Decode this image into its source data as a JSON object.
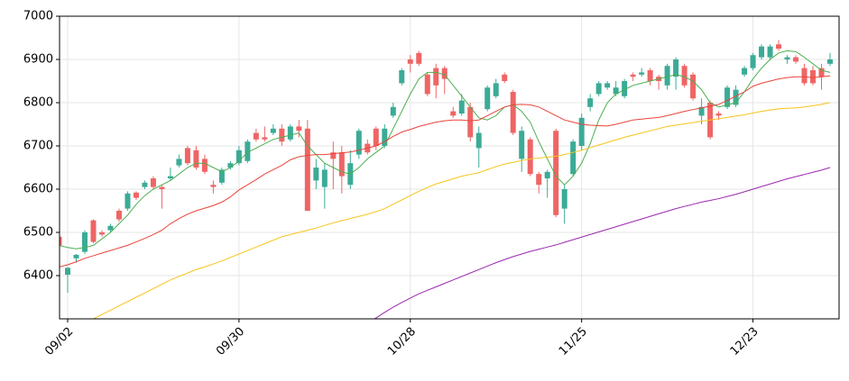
{
  "chart_data": {
    "type": "candlestick",
    "categories": [
      null,
      "09/02",
      null,
      null,
      null,
      null,
      null,
      null,
      null,
      null,
      null,
      null,
      null,
      null,
      null,
      null,
      null,
      null,
      null,
      null,
      null,
      "09/30",
      null,
      null,
      null,
      null,
      null,
      null,
      null,
      null,
      null,
      null,
      null,
      null,
      null,
      null,
      null,
      null,
      null,
      null,
      null,
      "10/28",
      null,
      null,
      null,
      null,
      null,
      null,
      null,
      null,
      null,
      null,
      null,
      null,
      null,
      null,
      null,
      null,
      null,
      null,
      null,
      "11/25",
      null,
      null,
      null,
      null,
      null,
      null,
      null,
      null,
      null,
      null,
      null,
      null,
      null,
      null,
      null,
      null,
      null,
      null,
      null,
      "12/23",
      null,
      null,
      null,
      null,
      null,
      null,
      null,
      null,
      null
    ],
    "open": [
      6490,
      6402,
      6440,
      6455,
      6528,
      6500,
      6505,
      6550,
      6555,
      6592,
      6605,
      6625,
      6605,
      6625,
      6655,
      6695,
      6690,
      6670,
      6610,
      6615,
      6650,
      6660,
      6665,
      6730,
      6720,
      6730,
      6740,
      6715,
      6745,
      6740,
      6620,
      6605,
      6685,
      6685,
      6610,
      6680,
      6705,
      6740,
      6700,
      6770,
      6845,
      6900,
      6915,
      6865,
      6880,
      6880,
      6780,
      6775,
      6790,
      6695,
      6785,
      6815,
      6865,
      6825,
      6670,
      6715,
      6635,
      6625,
      6735,
      6555,
      6635,
      6700,
      6790,
      6820,
      6835,
      6820,
      6815,
      6865,
      6865,
      6875,
      6860,
      6840,
      6860,
      6885,
      6865,
      6770,
      6800,
      6775,
      6790,
      6795,
      6865,
      6880,
      6905,
      6905,
      6935,
      6900,
      6905,
      6880,
      6875,
      6880,
      6890
    ],
    "high": [
      6500,
      6420,
      6450,
      6505,
      6530,
      6505,
      6520,
      6555,
      6595,
      6595,
      6620,
      6630,
      6610,
      6650,
      6680,
      6700,
      6700,
      6680,
      6620,
      6650,
      6665,
      6700,
      6715,
      6740,
      6745,
      6750,
      6750,
      6750,
      6760,
      6760,
      6670,
      6660,
      6710,
      6700,
      6690,
      6740,
      6715,
      6745,
      6750,
      6800,
      6880,
      6910,
      6920,
      6870,
      6890,
      6885,
      6790,
      6820,
      6800,
      6745,
      6840,
      6855,
      6870,
      6830,
      6745,
      6720,
      6640,
      6645,
      6740,
      6610,
      6715,
      6775,
      6820,
      6850,
      6850,
      6850,
      6855,
      6870,
      6880,
      6880,
      6865,
      6890,
      6905,
      6890,
      6870,
      6810,
      6805,
      6780,
      6840,
      6840,
      6885,
      6915,
      6935,
      6935,
      6945,
      6910,
      6910,
      6890,
      6885,
      6890,
      6915
    ],
    "low": [
      6465,
      6360,
      6430,
      6450,
      6475,
      6490,
      6500,
      6525,
      6550,
      6575,
      6600,
      6600,
      6555,
      6620,
      6650,
      6655,
      6645,
      6635,
      6590,
      6610,
      6645,
      6655,
      6660,
      6710,
      6710,
      6725,
      6700,
      6710,
      6720,
      6550,
      6600,
      6555,
      6600,
      6590,
      6600,
      6670,
      6680,
      6690,
      6695,
      6765,
      6840,
      6870,
      6885,
      6815,
      6810,
      6820,
      6765,
      6770,
      6710,
      6650,
      6780,
      6810,
      6845,
      6725,
      6640,
      6630,
      6590,
      6580,
      6535,
      6520,
      6630,
      6690,
      6780,
      6815,
      6830,
      6815,
      6810,
      6850,
      6860,
      6840,
      6830,
      6830,
      6830,
      6835,
      6805,
      6750,
      6715,
      6760,
      6785,
      6790,
      6860,
      6875,
      6900,
      6900,
      6920,
      6890,
      6890,
      6840,
      6840,
      6830,
      6885
    ],
    "close": [
      6470,
      6418,
      6448,
      6500,
      6478,
      6495,
      6515,
      6530,
      6590,
      6580,
      6615,
      6605,
      6600,
      6630,
      6670,
      6660,
      6650,
      6640,
      6605,
      6645,
      6660,
      6690,
      6710,
      6715,
      6715,
      6740,
      6710,
      6745,
      6735,
      6550,
      6650,
      6645,
      6670,
      6630,
      6660,
      6735,
      6685,
      6700,
      6740,
      6790,
      6875,
      6890,
      6890,
      6820,
      6840,
      6855,
      6770,
      6805,
      6720,
      6730,
      6835,
      6845,
      6850,
      6730,
      6735,
      6635,
      6610,
      6640,
      6540,
      6600,
      6710,
      6765,
      6810,
      6845,
      6845,
      6835,
      6850,
      6860,
      6870,
      6850,
      6850,
      6885,
      6900,
      6840,
      6810,
      6790,
      6720,
      6770,
      6835,
      6830,
      6880,
      6910,
      6930,
      6930,
      6925,
      6905,
      6895,
      6845,
      6845,
      6860,
      6900
    ],
    "up_color": "#3bab96",
    "down_color": "#ef6565",
    "series": [
      {
        "color": "#4caf50",
        "values": [
          6470,
          6465,
          6462,
          6465,
          6470,
          6485,
          6500,
          6520,
          6540,
          6565,
          6585,
          6600,
          6610,
          6620,
          6635,
          6650,
          6660,
          6660,
          6650,
          6640,
          6650,
          6665,
          6685,
          6695,
          6705,
          6715,
          6720,
          6725,
          6730,
          6700,
          6680,
          6660,
          6650,
          6640,
          6635,
          6650,
          6670,
          6685,
          6700,
          6740,
          6780,
          6820,
          6855,
          6870,
          6870,
          6865,
          6840,
          6815,
          6790,
          6765,
          6760,
          6770,
          6790,
          6795,
          6780,
          6755,
          6710,
          6670,
          6630,
          6610,
          6630,
          6660,
          6705,
          6760,
          6800,
          6820,
          6830,
          6840,
          6845,
          6850,
          6855,
          6860,
          6865,
          6860,
          6850,
          6830,
          6800,
          6790,
          6795,
          6800,
          6825,
          6855,
          6880,
          6900,
          6915,
          6920,
          6918,
          6905,
          6890,
          6875,
          6870
        ]
      },
      {
        "color": "#e8443a",
        "values": [
          6420,
          6425,
          6432,
          6440,
          6446,
          6452,
          6458,
          6464,
          6470,
          6478,
          6486,
          6495,
          6505,
          6520,
          6532,
          6542,
          6550,
          6556,
          6562,
          6570,
          6582,
          6598,
          6610,
          6622,
          6635,
          6645,
          6655,
          6668,
          6675,
          6678,
          6680,
          6680,
          6682,
          6684,
          6686,
          6690,
          6695,
          6700,
          6710,
          6722,
          6732,
          6738,
          6745,
          6750,
          6755,
          6758,
          6760,
          6760,
          6758,
          6760,
          6770,
          6780,
          6790,
          6795,
          6796,
          6795,
          6790,
          6780,
          6770,
          6760,
          6755,
          6750,
          6748,
          6747,
          6746,
          6750,
          6755,
          6760,
          6762,
          6764,
          6766,
          6770,
          6775,
          6780,
          6784,
          6788,
          6792,
          6796,
          6805,
          6815,
          6825,
          6838,
          6845,
          6850,
          6855,
          6858,
          6860,
          6860,
          6858,
          6860,
          6862
        ]
      },
      {
        "color": "#f5c518",
        "values": [
          6260,
          6272,
          6284,
          6292,
          6300,
          6310,
          6320,
          6330,
          6340,
          6350,
          6360,
          6370,
          6380,
          6390,
          6398,
          6406,
          6414,
          6420,
          6427,
          6434,
          6442,
          6450,
          6458,
          6466,
          6474,
          6482,
          6490,
          6495,
          6500,
          6505,
          6510,
          6516,
          6522,
          6527,
          6532,
          6537,
          6542,
          6548,
          6555,
          6565,
          6575,
          6585,
          6595,
          6604,
          6612,
          6618,
          6624,
          6630,
          6634,
          6638,
          6645,
          6652,
          6658,
          6662,
          6666,
          6670,
          6672,
          6674,
          6676,
          6680,
          6685,
          6690,
          6696,
          6702,
          6708,
          6714,
          6720,
          6725,
          6730,
          6735,
          6740,
          6745,
          6748,
          6751,
          6754,
          6757,
          6760,
          6763,
          6766,
          6769,
          6772,
          6776,
          6780,
          6783,
          6786,
          6787,
          6788,
          6790,
          6793,
          6796,
          6800
        ]
      },
      {
        "color": "#9c27b0",
        "values": [
          null,
          null,
          null,
          null,
          null,
          null,
          null,
          null,
          null,
          null,
          null,
          null,
          null,
          null,
          null,
          null,
          null,
          null,
          null,
          null,
          null,
          null,
          null,
          null,
          null,
          null,
          null,
          null,
          null,
          null,
          null,
          null,
          null,
          null,
          null,
          null,
          6292,
          6302,
          6315,
          6327,
          6338,
          6348,
          6358,
          6366,
          6374,
          6382,
          6390,
          6398,
          6406,
          6414,
          6422,
          6430,
          6437,
          6444,
          6450,
          6456,
          6461,
          6466,
          6471,
          6477,
          6483,
          6489,
          6495,
          6501,
          6507,
          6513,
          6519,
          6525,
          6531,
          6537,
          6543,
          6549,
          6555,
          6560,
          6565,
          6570,
          6574,
          6578,
          6583,
          6588,
          6594,
          6600,
          6606,
          6612,
          6618,
          6624,
          6629,
          6634,
          6639,
          6644,
          6650
        ]
      }
    ],
    "xlim": [
      0,
      91
    ],
    "ylim": [
      6300,
      7000
    ],
    "yticks": [
      6400,
      6500,
      6600,
      6700,
      6800,
      6900,
      7000
    ],
    "grid": true
  }
}
